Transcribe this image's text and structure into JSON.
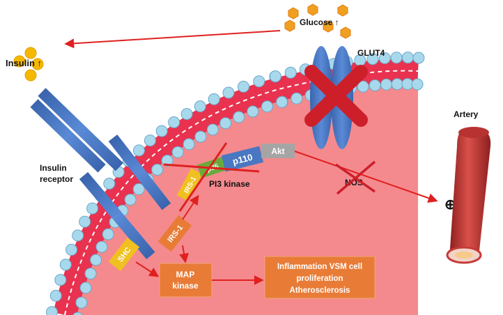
{
  "colors": {
    "cytoplasm": "#f48a8e",
    "membrane": "#e8324f",
    "phospholipid_head": "#a8d8ec",
    "receptor": "#4a77c2",
    "glut4": "#4a77c2",
    "irs1_box": "#f0c020",
    "p85_box": "#6aaa3c",
    "p110_box": "#4a77c2",
    "akt_box": "#a5a5a5",
    "orange_box": "#e87c37",
    "arrow_red": "#e02020",
    "cross_red": "#cc1f2a",
    "insulin": "#f5b800",
    "glucose": "#f0a020",
    "artery": "#c73a3a"
  },
  "labels": {
    "insulin": "Insulin ↑",
    "glucose": "Glucose ↑",
    "glut4": "GLUT4",
    "insulin_receptor_line1": "Insulin",
    "insulin_receptor_line2": "receptor",
    "pi3_kinase": "PI3 kinase",
    "nos": "NOS",
    "artery": "Artery",
    "plus_symbol": "⊕"
  },
  "boxes": {
    "irs1_upper": "IRS-1",
    "p85": "p85",
    "p110": "p110",
    "akt": "Akt",
    "irs1_lower": "IRS-1",
    "shc": "SHC",
    "map_kinase_line1": "MAP",
    "map_kinase_line2": "kinase",
    "outcome_line1": "Inflammation VSM cell",
    "outcome_line2": "proliferation",
    "outcome_line3": "Atherosclerosis"
  },
  "icons": {
    "insulin": "insulin-molecule-icon",
    "glucose": "glucose-hexagon-icon",
    "glut4": "glut4-transporter-icon",
    "artery": "artery-vessel-icon",
    "blocked": "red-cross-icon"
  }
}
